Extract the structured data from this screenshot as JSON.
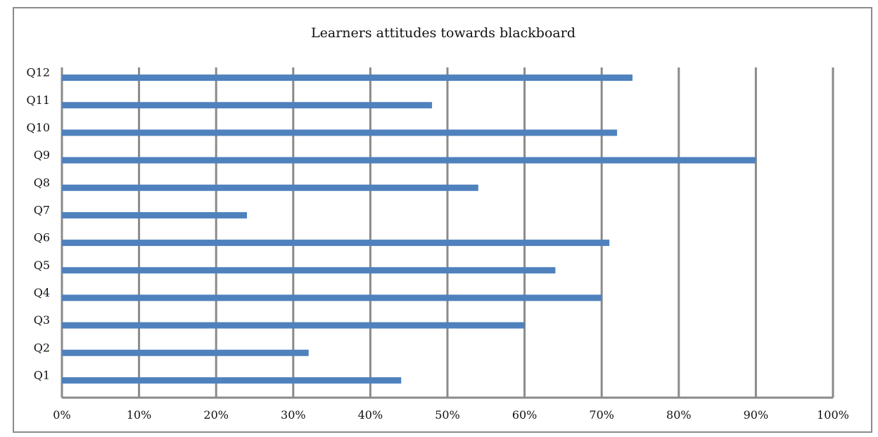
{
  "chart_data": {
    "type": "bar",
    "orientation": "horizontal",
    "title": "Learners attitudes towards blackboard",
    "xlabel": "",
    "ylabel": "",
    "categories": [
      "Q1",
      "Q2",
      "Q3",
      "Q4",
      "Q5",
      "Q6",
      "Q7",
      "Q8",
      "Q9",
      "Q10",
      "Q11",
      "Q12"
    ],
    "values": [
      0.44,
      0.32,
      0.6,
      0.7,
      0.64,
      0.71,
      0.24,
      0.54,
      0.9,
      0.72,
      0.48,
      0.74
    ],
    "xlim": [
      0,
      1
    ],
    "x_ticks": [
      "0%",
      "10%",
      "20%",
      "30%",
      "40%",
      "50%",
      "60%",
      "70%",
      "80%",
      "90%",
      "100%"
    ],
    "grid": "vertical",
    "legend": "none",
    "bar_color": "#4f81bd",
    "grid_color": "#8a8a8a"
  }
}
